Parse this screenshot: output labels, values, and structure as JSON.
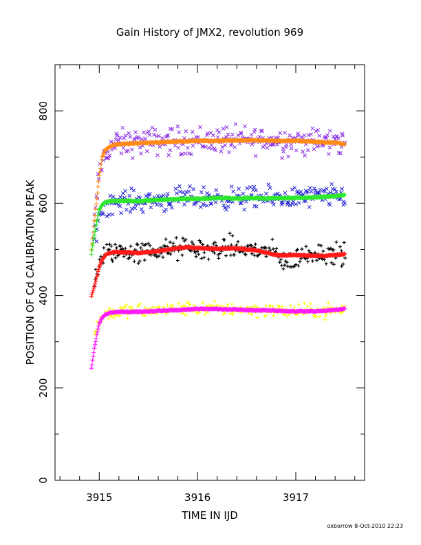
{
  "chart_data": {
    "type": "scatter",
    "title": "Gain History of JMX2, revolution 969",
    "xlabel": "TIME IN IJD",
    "ylabel": "POSITION OF Cd CALIBRATION PEAK",
    "xlim": [
      3914.55,
      3917.7
    ],
    "ylim": [
      0,
      900
    ],
    "x_ticks": [
      3915,
      3916,
      3917
    ],
    "y_ticks": [
      0,
      200,
      400,
      600,
      800
    ],
    "grid": false,
    "series": [
      {
        "role": "scatter",
        "marker": "x",
        "color": "#8a2be2",
        "x": [
          3914.95,
          3915.0,
          3915.05,
          3915.1,
          3915.2,
          3915.3,
          3915.4,
          3915.5,
          3915.6,
          3915.7,
          3915.8,
          3915.9,
          3916.0,
          3916.1,
          3916.2,
          3916.3,
          3916.4,
          3916.5,
          3916.6,
          3916.7,
          3916.8,
          3916.9,
          3917.0,
          3917.1,
          3917.2,
          3917.3,
          3917.4,
          3917.5
        ],
        "y": [
          560,
          660,
          700,
          720,
          730,
          730,
          733,
          733,
          735,
          735,
          735,
          736,
          737,
          736,
          738,
          737,
          735,
          737,
          738,
          736,
          736,
          735,
          735,
          734,
          733,
          733,
          732,
          730
        ],
        "spread": 28
      },
      {
        "role": "fit",
        "marker": "+",
        "color": "#ff8c1a",
        "x": [
          3914.92,
          3914.95,
          3914.98,
          3915.0,
          3915.03,
          3915.06,
          3915.1,
          3915.15,
          3915.2,
          3915.3,
          3915.4,
          3915.5,
          3915.6,
          3915.7,
          3915.8,
          3915.9,
          3916.0,
          3916.1,
          3916.2,
          3916.3,
          3916.4,
          3916.5,
          3916.6,
          3916.7,
          3916.8,
          3916.9,
          3917.0,
          3917.1,
          3917.2,
          3917.3,
          3917.4,
          3917.5
        ],
        "y": [
          500,
          560,
          620,
          660,
          700,
          715,
          722,
          726,
          728,
          729,
          730,
          731,
          732,
          733,
          734,
          734,
          735,
          735,
          735,
          736,
          736,
          736,
          736,
          736,
          735,
          735,
          735,
          734,
          733,
          732,
          731,
          728
        ]
      },
      {
        "role": "scatter",
        "marker": "x",
        "color": "#1f1fd6",
        "x": [
          3914.95,
          3915.0,
          3915.05,
          3915.1,
          3915.2,
          3915.3,
          3915.4,
          3915.5,
          3915.6,
          3915.7,
          3915.8,
          3915.9,
          3916.0,
          3916.1,
          3916.2,
          3916.3,
          3916.4,
          3916.5,
          3916.6,
          3916.7,
          3916.8,
          3916.9,
          3917.0,
          3917.1,
          3917.2,
          3917.3,
          3917.4,
          3917.5
        ],
        "y": [
          520,
          575,
          595,
          600,
          604,
          605,
          604,
          606,
          607,
          608,
          609,
          610,
          611,
          610,
          612,
          611,
          610,
          612,
          611,
          610,
          611,
          612,
          612,
          613,
          614,
          614,
          615,
          616
        ],
        "spread": 22
      },
      {
        "role": "fit",
        "marker": "+",
        "color": "#2ee82e",
        "x": [
          3914.92,
          3914.95,
          3914.98,
          3915.0,
          3915.03,
          3915.06,
          3915.1,
          3915.15,
          3915.2,
          3915.3,
          3915.4,
          3915.5,
          3915.6,
          3915.7,
          3915.8,
          3915.9,
          3916.0,
          3916.1,
          3916.2,
          3916.3,
          3916.4,
          3916.5,
          3916.6,
          3916.7,
          3916.8,
          3916.9,
          3917.0,
          3917.1,
          3917.2,
          3917.3,
          3917.4,
          3917.5
        ],
        "y": [
          490,
          530,
          565,
          585,
          597,
          602,
          604,
          605,
          605,
          605,
          604,
          606,
          607,
          608,
          609,
          610,
          610,
          610,
          611,
          611,
          610,
          611,
          611,
          610,
          611,
          611,
          612,
          612,
          613,
          614,
          615,
          618
        ]
      },
      {
        "role": "scatter",
        "marker": "+",
        "color": "#000000",
        "x": [
          3914.95,
          3915.0,
          3915.05,
          3915.1,
          3915.2,
          3915.3,
          3915.4,
          3915.5,
          3915.6,
          3915.7,
          3915.8,
          3915.9,
          3916.0,
          3916.1,
          3916.2,
          3916.3,
          3916.4,
          3916.5,
          3916.6,
          3916.7,
          3916.8,
          3916.9,
          3917.0,
          3917.1,
          3917.2,
          3917.3,
          3917.4,
          3917.5
        ],
        "y": [
          430,
          470,
          488,
          495,
          497,
          495,
          492,
          496,
          498,
          500,
          500,
          505,
          500,
          498,
          500,
          505,
          502,
          500,
          498,
          495,
          490,
          470,
          480,
          488,
          495,
          492,
          490,
          488
        ],
        "spread": 22
      },
      {
        "role": "fit",
        "marker": "+",
        "color": "#ff1a1a",
        "x": [
          3914.92,
          3914.95,
          3914.98,
          3915.0,
          3915.03,
          3915.06,
          3915.1,
          3915.15,
          3915.2,
          3915.3,
          3915.4,
          3915.5,
          3915.6,
          3915.7,
          3915.8,
          3915.9,
          3916.0,
          3916.1,
          3916.2,
          3916.3,
          3916.4,
          3916.5,
          3916.6,
          3916.7,
          3916.8,
          3916.9,
          3917.0,
          3917.1,
          3917.2,
          3917.3,
          3917.4,
          3917.5
        ],
        "y": [
          398,
          420,
          445,
          462,
          478,
          487,
          492,
          494,
          494,
          494,
          492,
          494,
          496,
          500,
          503,
          505,
          503,
          502,
          501,
          502,
          502,
          500,
          498,
          493,
          488,
          487,
          488,
          487,
          486,
          486,
          488,
          490
        ]
      },
      {
        "role": "scatter",
        "marker": "+",
        "color": "#ffff1a",
        "x": [
          3914.95,
          3915.0,
          3915.05,
          3915.1,
          3915.2,
          3915.3,
          3915.4,
          3915.5,
          3915.6,
          3915.7,
          3915.8,
          3915.9,
          3916.0,
          3916.1,
          3916.2,
          3916.3,
          3916.4,
          3916.5,
          3916.6,
          3916.7,
          3916.8,
          3916.9,
          3917.0,
          3917.1,
          3917.2,
          3917.3,
          3917.4,
          3917.5
        ],
        "y": [
          320,
          345,
          358,
          362,
          365,
          366,
          366,
          366,
          368,
          370,
          370,
          372,
          372,
          371,
          372,
          371,
          371,
          370,
          370,
          368,
          368,
          366,
          366,
          366,
          366,
          367,
          368,
          370
        ],
        "spread": 14
      },
      {
        "role": "fit",
        "marker": "+",
        "color": "#ff1aff",
        "x": [
          3914.92,
          3914.95,
          3914.98,
          3915.0,
          3915.03,
          3915.06,
          3915.1,
          3915.15,
          3915.2,
          3915.3,
          3915.4,
          3915.5,
          3915.6,
          3915.7,
          3915.8,
          3915.9,
          3916.0,
          3916.1,
          3916.2,
          3916.3,
          3916.4,
          3916.5,
          3916.6,
          3916.7,
          3916.8,
          3916.9,
          3917.0,
          3917.1,
          3917.2,
          3917.3,
          3917.4,
          3917.5
        ],
        "y": [
          242,
          285,
          320,
          340,
          352,
          359,
          362,
          364,
          365,
          365,
          365,
          366,
          367,
          368,
          369,
          370,
          371,
          371,
          371,
          370,
          370,
          369,
          368,
          368,
          367,
          366,
          366,
          366,
          366,
          367,
          369,
          371
        ]
      }
    ]
  },
  "footer": "oxborrow  8-Oct-2010 22:23"
}
